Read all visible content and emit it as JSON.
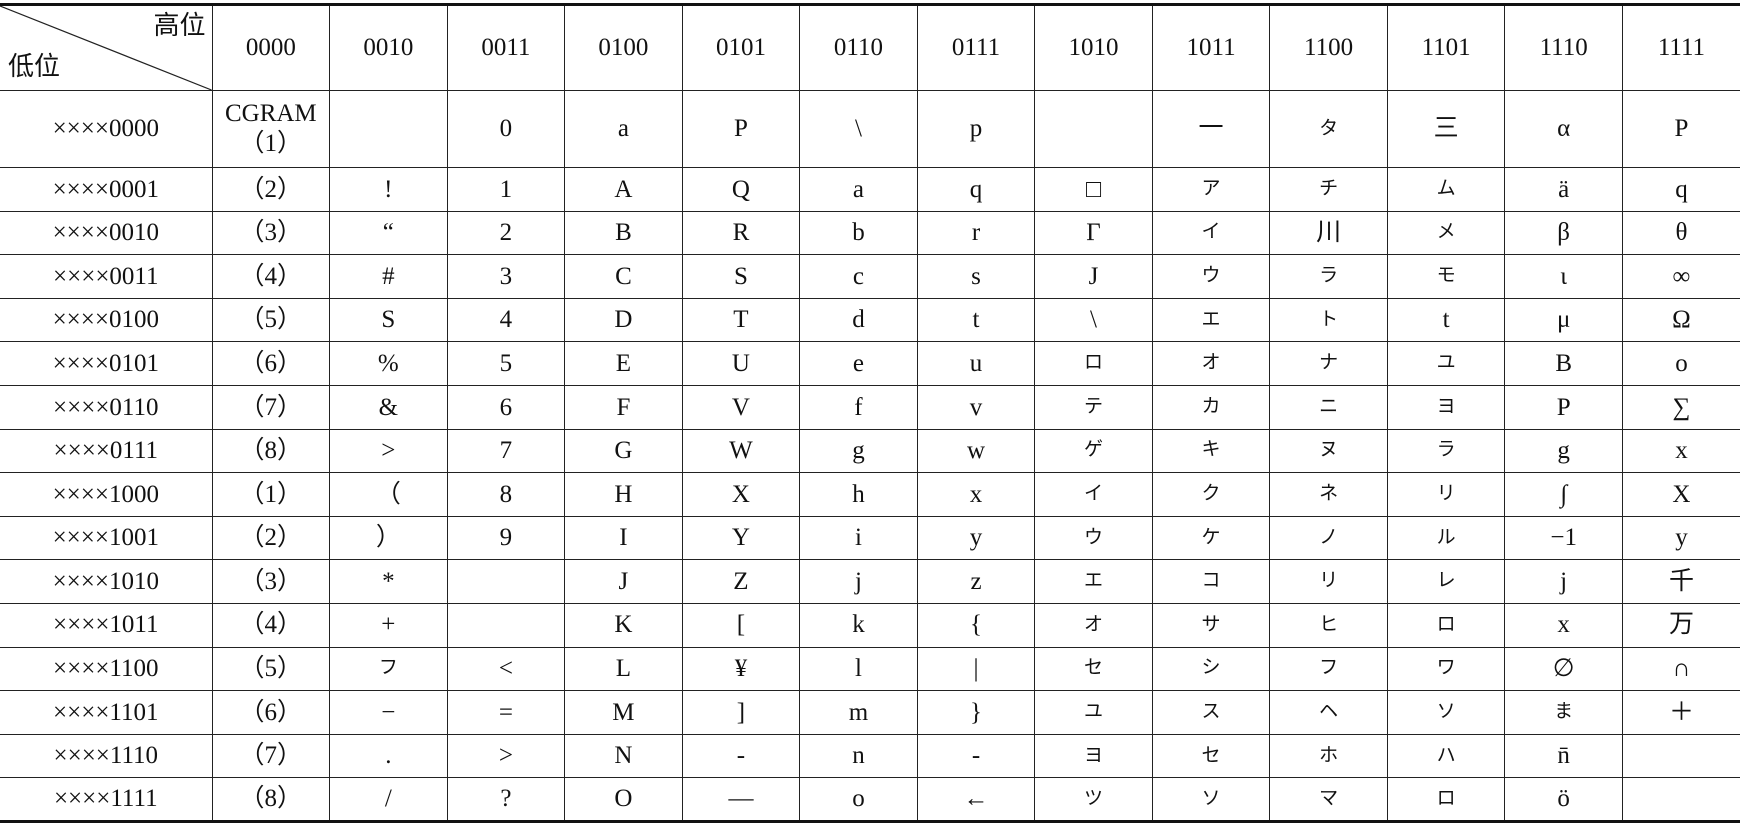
{
  "corner": {
    "high": "高位",
    "low": "低位"
  },
  "columns": [
    "0000",
    "0010",
    "0011",
    "0100",
    "0101",
    "0110",
    "0111",
    "1010",
    "1011",
    "1100",
    "1101",
    "1110",
    "1111"
  ],
  "rows": [
    {
      "label": "××××0000",
      "cells": [
        "CGRAM\n（1）",
        "",
        "0",
        "a",
        "P",
        "\\",
        "p",
        "",
        "一",
        "タ",
        "三",
        "α",
        "P"
      ]
    },
    {
      "label": "××××0001",
      "cells": [
        "（2）",
        "!",
        "1",
        "A",
        "Q",
        "a",
        "q",
        "□",
        "ア",
        "チ",
        "ム",
        "ä",
        "q"
      ]
    },
    {
      "label": "××××0010",
      "cells": [
        "（3）",
        "“",
        "2",
        "B",
        "R",
        "b",
        "r",
        "Γ",
        "イ",
        "川",
        "メ",
        "β",
        "θ"
      ]
    },
    {
      "label": "××××0011",
      "cells": [
        "（4）",
        "#",
        "3",
        "C",
        "S",
        "c",
        "s",
        "J",
        "ウ",
        "ラ",
        "モ",
        "ι",
        "∞"
      ]
    },
    {
      "label": "××××0100",
      "cells": [
        "（5）",
        "S",
        "4",
        "D",
        "T",
        "d",
        "t",
        "\\",
        "エ",
        "ト",
        "t",
        "μ",
        "Ω"
      ]
    },
    {
      "label": "××××0101",
      "cells": [
        "（6）",
        "%",
        "5",
        "E",
        "U",
        "e",
        "u",
        "ロ",
        "オ",
        "ナ",
        "ユ",
        "B",
        "o"
      ]
    },
    {
      "label": "××××0110",
      "cells": [
        "（7）",
        "&",
        "6",
        "F",
        "V",
        "f",
        "v",
        "テ",
        "カ",
        "ニ",
        "ヨ",
        "P",
        "∑"
      ]
    },
    {
      "label": "××××0111",
      "cells": [
        "（8）",
        ">",
        "7",
        "G",
        "W",
        "g",
        "w",
        "ゲ",
        "キ",
        "ヌ",
        "ラ",
        "g",
        "x"
      ]
    },
    {
      "label": "××××1000",
      "cells": [
        "（1）",
        "（",
        "8",
        "H",
        "X",
        "h",
        "x",
        "イ",
        "ク",
        "ネ",
        "リ",
        "∫",
        "X"
      ]
    },
    {
      "label": "××××1001",
      "cells": [
        "（2）",
        "）",
        "9",
        "I",
        "Y",
        "i",
        "y",
        "ウ",
        "ケ",
        "ノ",
        "ル",
        "−1",
        "y"
      ]
    },
    {
      "label": "××××1010",
      "cells": [
        "（3）",
        "*",
        "",
        "J",
        "Z",
        "j",
        "z",
        "エ",
        "コ",
        "リ",
        "レ",
        "j",
        "千"
      ]
    },
    {
      "label": "××××1011",
      "cells": [
        "（4）",
        "+",
        "",
        "K",
        "[",
        "k",
        "{",
        "オ",
        "サ",
        "ヒ",
        "ロ",
        "x",
        "万"
      ]
    },
    {
      "label": "××××1100",
      "cells": [
        "（5）",
        "フ",
        "<",
        "L",
        "¥",
        "l",
        "|",
        "セ",
        "シ",
        "フ",
        "ワ",
        "∅",
        "∩"
      ]
    },
    {
      "label": "××××1101",
      "cells": [
        "（6）",
        "−",
        "=",
        "M",
        "]",
        "m",
        "}",
        "ユ",
        "ス",
        "ヘ",
        "ソ",
        "ま",
        "＋"
      ]
    },
    {
      "label": "××××1110",
      "cells": [
        "（7）",
        ".",
        ">",
        "N",
        "-",
        "n",
        "-",
        "ヨ",
        "セ",
        "ホ",
        "ハ",
        "n̄",
        ""
      ]
    },
    {
      "label": "××××1111",
      "cells": [
        "（8）",
        "/",
        "?",
        "O",
        "—",
        "o",
        "←",
        "ツ",
        "ソ",
        "マ",
        "ロ",
        "ö",
        ""
      ]
    }
  ]
}
